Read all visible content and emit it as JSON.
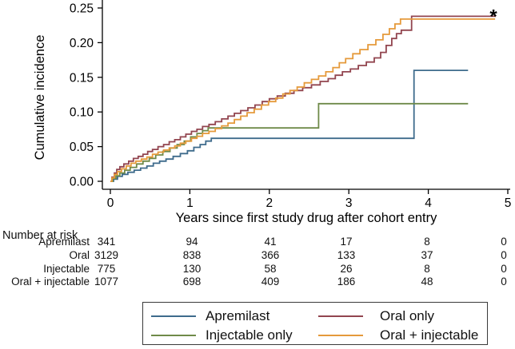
{
  "chart_data": {
    "type": "line",
    "step": true,
    "title": "",
    "xlabel": "Years since first study drug after cohort entry",
    "ylabel": "Cumulative incidence",
    "xlim": [
      0,
      5
    ],
    "ylim": [
      0,
      0.25
    ],
    "xticks": [
      "0",
      "1",
      "2",
      "3",
      "4",
      "5"
    ],
    "yticks": [
      "0.00",
      "0.05",
      "0.10",
      "0.15",
      "0.20",
      "0.25"
    ],
    "grid": false,
    "legend_position": "bottom",
    "annotation": {
      "text": "*",
      "x": 4.82,
      "y": 0.245
    },
    "series": [
      {
        "name": "Apremilast",
        "color": "#3e6b8c",
        "end_x": 4.5,
        "points": [
          [
            0,
            0
          ],
          [
            0.04,
            0.003
          ],
          [
            0.09,
            0.007
          ],
          [
            0.15,
            0.01
          ],
          [
            0.22,
            0.013
          ],
          [
            0.3,
            0.016
          ],
          [
            0.38,
            0.019
          ],
          [
            0.46,
            0.022
          ],
          [
            0.54,
            0.026
          ],
          [
            0.62,
            0.029
          ],
          [
            0.7,
            0.032
          ],
          [
            0.79,
            0.036
          ],
          [
            0.88,
            0.04
          ],
          [
            0.97,
            0.044
          ],
          [
            1.05,
            0.049
          ],
          [
            1.13,
            0.053
          ],
          [
            1.2,
            0.058
          ],
          [
            1.27,
            0.062
          ],
          [
            3.82,
            0.16
          ]
        ]
      },
      {
        "name": "Oral only",
        "color": "#92454f",
        "end_x": 4.85,
        "points": [
          [
            0,
            0
          ],
          [
            0.02,
            0.006
          ],
          [
            0.05,
            0.012
          ],
          [
            0.08,
            0.017
          ],
          [
            0.12,
            0.021
          ],
          [
            0.17,
            0.025
          ],
          [
            0.23,
            0.029
          ],
          [
            0.29,
            0.033
          ],
          [
            0.35,
            0.036
          ],
          [
            0.41,
            0.039
          ],
          [
            0.47,
            0.043
          ],
          [
            0.53,
            0.046
          ],
          [
            0.6,
            0.05
          ],
          [
            0.67,
            0.053
          ],
          [
            0.74,
            0.057
          ],
          [
            0.81,
            0.06
          ],
          [
            0.88,
            0.064
          ],
          [
            0.95,
            0.068
          ],
          [
            1.02,
            0.072
          ],
          [
            1.09,
            0.075
          ],
          [
            1.16,
            0.079
          ],
          [
            1.24,
            0.082
          ],
          [
            1.32,
            0.086
          ],
          [
            1.4,
            0.09
          ],
          [
            1.48,
            0.094
          ],
          [
            1.56,
            0.098
          ],
          [
            1.64,
            0.102
          ],
          [
            1.73,
            0.106
          ],
          [
            1.82,
            0.11
          ],
          [
            1.91,
            0.115
          ],
          [
            2.0,
            0.119
          ],
          [
            2.1,
            0.123
          ],
          [
            2.2,
            0.127
          ],
          [
            2.31,
            0.131
          ],
          [
            2.42,
            0.135
          ],
          [
            2.53,
            0.139
          ],
          [
            2.64,
            0.144
          ],
          [
            2.74,
            0.148
          ],
          [
            2.83,
            0.153
          ],
          [
            2.92,
            0.158
          ],
          [
            3.02,
            0.162
          ],
          [
            3.12,
            0.167
          ],
          [
            3.22,
            0.172
          ],
          [
            3.32,
            0.178
          ],
          [
            3.4,
            0.186
          ],
          [
            3.47,
            0.196
          ],
          [
            3.54,
            0.206
          ],
          [
            3.6,
            0.213
          ],
          [
            3.66,
            0.218
          ],
          [
            3.79,
            0.238
          ]
        ]
      },
      {
        "name": "Injectable only",
        "color": "#6f8a49",
        "end_x": 4.5,
        "points": [
          [
            0,
            0
          ],
          [
            0.03,
            0.004
          ],
          [
            0.07,
            0.008
          ],
          [
            0.12,
            0.012
          ],
          [
            0.18,
            0.016
          ],
          [
            0.25,
            0.02
          ],
          [
            0.33,
            0.025
          ],
          [
            0.41,
            0.029
          ],
          [
            0.49,
            0.033
          ],
          [
            0.57,
            0.038
          ],
          [
            0.66,
            0.043
          ],
          [
            0.75,
            0.048
          ],
          [
            0.84,
            0.053
          ],
          [
            0.93,
            0.058
          ],
          [
            1.01,
            0.064
          ],
          [
            1.09,
            0.069
          ],
          [
            1.16,
            0.073
          ],
          [
            1.23,
            0.077
          ],
          [
            2.62,
            0.112
          ]
        ]
      },
      {
        "name": "Oral + injectable",
        "color": "#e59a3b",
        "end_x": 4.84,
        "points": [
          [
            0,
            0
          ],
          [
            0.02,
            0.005
          ],
          [
            0.05,
            0.01
          ],
          [
            0.09,
            0.014
          ],
          [
            0.14,
            0.018
          ],
          [
            0.2,
            0.022
          ],
          [
            0.26,
            0.026
          ],
          [
            0.32,
            0.029
          ],
          [
            0.39,
            0.032
          ],
          [
            0.46,
            0.035
          ],
          [
            0.53,
            0.039
          ],
          [
            0.6,
            0.042
          ],
          [
            0.67,
            0.045
          ],
          [
            0.74,
            0.048
          ],
          [
            0.81,
            0.051
          ],
          [
            0.88,
            0.055
          ],
          [
            0.95,
            0.058
          ],
          [
            1.02,
            0.062
          ],
          [
            1.09,
            0.065
          ],
          [
            1.16,
            0.069
          ],
          [
            1.24,
            0.072
          ],
          [
            1.32,
            0.076
          ],
          [
            1.4,
            0.08
          ],
          [
            1.48,
            0.084
          ],
          [
            1.56,
            0.089
          ],
          [
            1.64,
            0.094
          ],
          [
            1.72,
            0.099
          ],
          [
            1.81,
            0.104
          ],
          [
            1.9,
            0.11
          ],
          [
            1.99,
            0.115
          ],
          [
            2.08,
            0.12
          ],
          [
            2.17,
            0.126
          ],
          [
            2.26,
            0.131
          ],
          [
            2.35,
            0.136
          ],
          [
            2.44,
            0.142
          ],
          [
            2.53,
            0.147
          ],
          [
            2.62,
            0.152
          ],
          [
            2.71,
            0.158
          ],
          [
            2.8,
            0.164
          ],
          [
            2.88,
            0.171
          ],
          [
            2.96,
            0.177
          ],
          [
            3.05,
            0.184
          ],
          [
            3.14,
            0.19
          ],
          [
            3.24,
            0.197
          ],
          [
            3.34,
            0.204
          ],
          [
            3.43,
            0.212
          ],
          [
            3.51,
            0.22
          ],
          [
            3.58,
            0.227
          ],
          [
            3.65,
            0.234
          ]
        ]
      }
    ]
  },
  "risk_table": {
    "title": "Number at risk",
    "columns_years": [
      "0",
      "1",
      "2",
      "3",
      "4",
      "5"
    ],
    "rows": [
      {
        "label": "Apremilast",
        "values": [
          "341",
          "94",
          "41",
          "17",
          "8",
          "0"
        ]
      },
      {
        "label": "Oral",
        "values": [
          "3129",
          "838",
          "366",
          "133",
          "37",
          "0"
        ]
      },
      {
        "label": "Injectable",
        "values": [
          "775",
          "130",
          "58",
          "26",
          "8",
          "0"
        ]
      },
      {
        "label": "Oral + injectable",
        "values": [
          "1077",
          "698",
          "409",
          "186",
          "48",
          "0"
        ]
      }
    ]
  },
  "legend": {
    "items": [
      {
        "label": "Apremilast",
        "color": "#3e6b8c"
      },
      {
        "label": "Injectable only",
        "color": "#6f8a49"
      },
      {
        "label": "Oral only",
        "color": "#92454f"
      },
      {
        "label": "Oral + injectable",
        "color": "#e59a3b"
      }
    ]
  }
}
